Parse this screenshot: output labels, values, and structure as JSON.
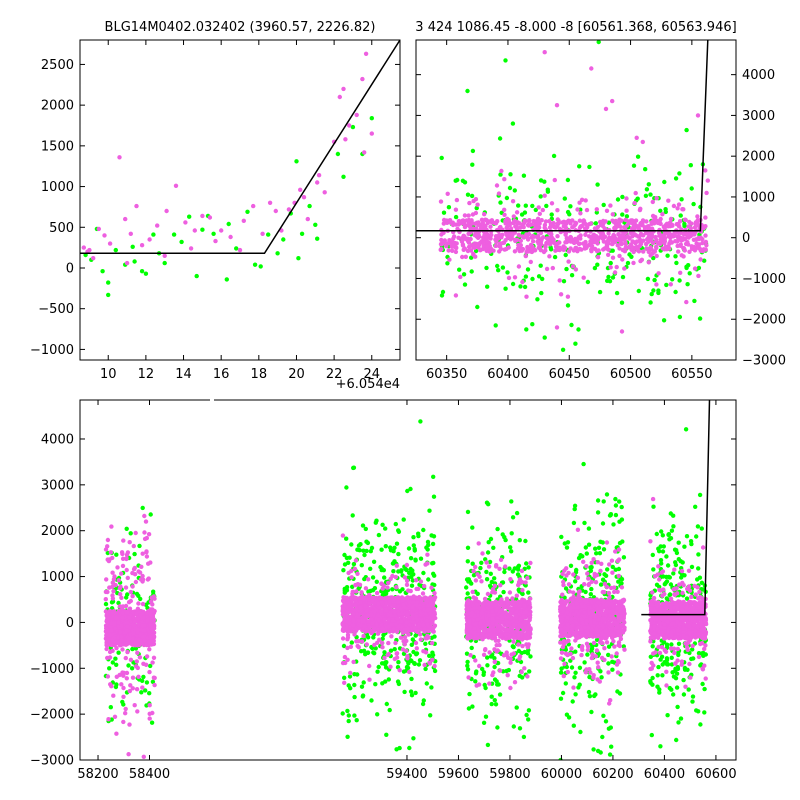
{
  "figure": {
    "background": "#ffffff",
    "colors": {
      "series_a": "#ee5fe0",
      "series_b": "#00ff00",
      "model": "#000000"
    }
  },
  "chart_data": [
    {
      "type": "scatter",
      "title": "BLG14M0402.032402 (3960.57, 2226.82)",
      "xlabel": "",
      "ylabel": "",
      "x_offset_label": "+6.054e4",
      "xlim": [
        8.5,
        25.5
      ],
      "ylim": [
        -1130,
        2800
      ],
      "xticks": [
        10,
        12,
        14,
        16,
        18,
        20,
        22,
        24
      ],
      "yticks": [
        -1000,
        -500,
        0,
        500,
        1000,
        1500,
        2000,
        2500
      ],
      "ytick_side": "left",
      "grid": false,
      "series": [
        {
          "color": "#ee5fe0",
          "points": [
            [
              8.7,
              250
            ],
            [
              8.9,
              200
            ],
            [
              9.2,
              120
            ],
            [
              9.5,
              480
            ],
            [
              9.8,
              400
            ],
            [
              10.1,
              300
            ],
            [
              10.6,
              1360
            ],
            [
              10.9,
              600
            ],
            [
              11.2,
              420
            ],
            [
              11.5,
              760
            ],
            [
              11.8,
              280
            ],
            [
              12.2,
              350
            ],
            [
              12.6,
              520
            ],
            [
              13.1,
              700
            ],
            [
              13.6,
              1010
            ],
            [
              14.1,
              560
            ],
            [
              14.6,
              460
            ],
            [
              15.0,
              640
            ],
            [
              15.4,
              620
            ],
            [
              16.0,
              460
            ],
            [
              16.5,
              380
            ],
            [
              17.2,
              580
            ],
            [
              17.7,
              760
            ],
            [
              18.2,
              420
            ],
            [
              18.6,
              800
            ],
            [
              18.9,
              700
            ],
            [
              19.6,
              720
            ],
            [
              19.9,
              800
            ],
            [
              20.2,
              960
            ],
            [
              20.6,
              600
            ],
            [
              21.1,
              1050
            ],
            [
              21.5,
              930
            ],
            [
              22.0,
              1550
            ],
            [
              22.3,
              2100
            ],
            [
              22.5,
              2200
            ],
            [
              22.8,
              1750
            ],
            [
              23.2,
              1880
            ],
            [
              23.5,
              2320
            ],
            [
              23.7,
              2630
            ],
            [
              23.6,
              1420
            ],
            [
              24.0,
              1650
            ],
            [
              22.6,
              1580
            ],
            [
              21.2,
              1140
            ],
            [
              20.4,
              870
            ],
            [
              19.2,
              460
            ],
            [
              17.0,
              220
            ],
            [
              15.7,
              330
            ],
            [
              14.4,
              240
            ],
            [
              13.0,
              150
            ],
            [
              11.0,
              60
            ],
            [
              9.0,
              220
            ]
          ]
        },
        {
          "color": "#00ff00",
          "points": [
            [
              8.8,
              160
            ],
            [
              9.1,
              100
            ],
            [
              9.4,
              480
            ],
            [
              9.7,
              -40
            ],
            [
              10.0,
              -180
            ],
            [
              10.0,
              -330
            ],
            [
              10.4,
              220
            ],
            [
              10.9,
              40
            ],
            [
              11.4,
              80
            ],
            [
              11.8,
              -40
            ],
            [
              12.4,
              410
            ],
            [
              12.7,
              180
            ],
            [
              13.0,
              60
            ],
            [
              13.5,
              410
            ],
            [
              13.9,
              320
            ],
            [
              14.3,
              630
            ],
            [
              14.7,
              -100
            ],
            [
              15.0,
              470
            ],
            [
              15.6,
              420
            ],
            [
              16.3,
              -140
            ],
            [
              16.8,
              240
            ],
            [
              17.4,
              690
            ],
            [
              17.8,
              40
            ],
            [
              18.1,
              20
            ],
            [
              18.5,
              410
            ],
            [
              19.0,
              180
            ],
            [
              19.3,
              350
            ],
            [
              19.7,
              670
            ],
            [
              20.0,
              1310
            ],
            [
              20.3,
              420
            ],
            [
              20.7,
              760
            ],
            [
              21.0,
              530
            ],
            [
              21.1,
              360
            ],
            [
              22.2,
              1400
            ],
            [
              22.5,
              1120
            ],
            [
              23.0,
              1730
            ],
            [
              23.5,
              1400
            ],
            [
              24.0,
              1840
            ],
            [
              20.1,
              120
            ],
            [
              16.4,
              540
            ],
            [
              15.3,
              640
            ],
            [
              12.0,
              -70
            ],
            [
              11.3,
              260
            ]
          ]
        }
      ],
      "model": [
        [
          8.5,
          180
        ],
        [
          18.3,
          180
        ],
        [
          25.5,
          2800
        ]
      ]
    },
    {
      "type": "scatter",
      "title": "3 424 1086.45 -8.000 -8 [60561.368, 60563.946]",
      "xlabel": "",
      "ylabel": "",
      "xlim": [
        60325,
        60586
      ],
      "ylim": [
        -3000,
        4850
      ],
      "xticks": [
        60350,
        60400,
        60450,
        60500,
        60550
      ],
      "yticks": [
        -3000,
        -2000,
        -1000,
        0,
        1000,
        2000,
        3000,
        4000
      ],
      "ytick_side": "right",
      "grid": false,
      "cloud": {
        "x_range": [
          60345,
          60562
        ],
        "core_band": [
          -350,
          450
        ],
        "n_a": 950,
        "n_b": 260,
        "sigma_a": 260,
        "sigma_b": 900
      },
      "series": [
        {
          "color": "#ee5fe0",
          "points": [
            [
              60430,
              4550
            ],
            [
              60468,
              4150
            ],
            [
              60480,
              3160
            ],
            [
              60440,
              3250
            ],
            [
              60485,
              3350
            ],
            [
              60505,
              2450
            ],
            [
              60510,
              2350
            ],
            [
              60440,
              -2200
            ],
            [
              60493,
              -2300
            ],
            [
              60555,
              3000
            ],
            [
              60561,
              1650
            ],
            [
              60562,
              1100
            ],
            [
              60563,
              1400
            ]
          ]
        },
        {
          "color": "#00ff00",
          "points": [
            [
              60367,
              3600
            ],
            [
              60398,
              4350
            ],
            [
              60365,
              -1150
            ],
            [
              60375,
              -1700
            ],
            [
              60390,
              -2150
            ],
            [
              60415,
              -2250
            ],
            [
              60430,
              -2450
            ],
            [
              60445,
              -2750
            ],
            [
              60455,
              -2600
            ],
            [
              60404,
              2800
            ],
            [
              60474,
              4800
            ],
            [
              60540,
              -1050
            ],
            [
              60559,
              1800
            ]
          ]
        }
      ],
      "model": [
        [
          60325,
          170
        ],
        [
          60557,
          170
        ],
        [
          60563,
          4850
        ]
      ]
    },
    {
      "type": "scatter",
      "title": "",
      "xlabel": "",
      "ylabel": "",
      "xlim": [
        58130,
        60678
      ],
      "ylim": [
        -3000,
        4850
      ],
      "xticks": [
        58200,
        58400,
        59400,
        59600,
        59800,
        60000,
        60200,
        60400,
        60600
      ],
      "yticks": [
        -3000,
        -2000,
        -1000,
        0,
        1000,
        2000,
        3000,
        4000
      ],
      "ytick_side": "left",
      "grid": false,
      "clusters": [
        {
          "x_range": [
            58230,
            58420
          ],
          "core_band": [
            -500,
            250
          ],
          "n_a": 1000,
          "n_b": 120,
          "sigma_a": 500,
          "sigma_b": 1000
        },
        {
          "x_range": [
            59150,
            59510
          ],
          "core_band": [
            -200,
            550
          ],
          "n_a": 1200,
          "n_b": 420,
          "sigma_a": 280,
          "sigma_b": 1100
        },
        {
          "x_range": [
            59630,
            59880
          ],
          "core_band": [
            -350,
            450
          ],
          "n_a": 900,
          "n_b": 260,
          "sigma_a": 300,
          "sigma_b": 1000
        },
        {
          "x_range": [
            59995,
            60245
          ],
          "core_band": [
            -300,
            500
          ],
          "n_a": 950,
          "n_b": 280,
          "sigma_a": 320,
          "sigma_b": 1200
        },
        {
          "x_range": [
            60345,
            60562
          ],
          "core_band": [
            -350,
            450
          ],
          "n_a": 850,
          "n_b": 300,
          "sigma_a": 280,
          "sigma_b": 1100
        }
      ],
      "model": [
        [
          60310,
          170
        ],
        [
          60557,
          170
        ],
        [
          60575,
          4850
        ]
      ]
    }
  ]
}
